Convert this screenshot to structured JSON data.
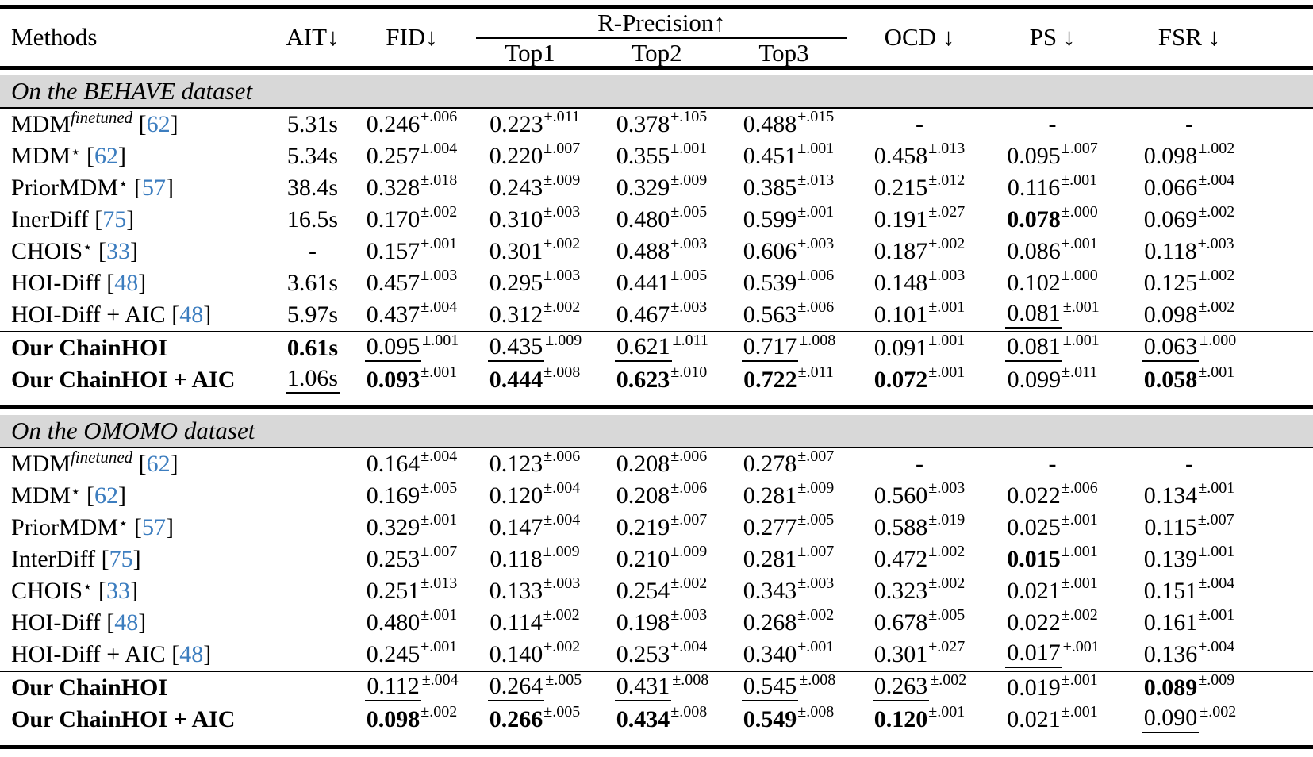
{
  "colors": {
    "citation_blue": "#3c7dbf",
    "band_gray": "#d8d8d8"
  },
  "header": {
    "methods": "Methods",
    "ait": "AIT↓",
    "fid": "FID↓",
    "rprecision": "R-Precision↑",
    "top1": "Top1",
    "top2": "Top2",
    "top3": "Top3",
    "ocd": "OCD ↓",
    "ps": "PS ↓",
    "fsr": "FSR ↓"
  },
  "sections": [
    {
      "title": "On the BEHAVE dataset",
      "rule_before_row": 7,
      "rows": [
        {
          "method": {
            "label": "MDM",
            "sup": "finetuned",
            "cite": "62"
          },
          "cells": [
            {
              "v": "5.31s"
            },
            {
              "v": "0.246",
              "e": "±.006"
            },
            {
              "v": "0.223",
              "e": "±.011"
            },
            {
              "v": "0.378",
              "e": "±.105"
            },
            {
              "v": "0.488",
              "e": "±.015"
            },
            {
              "v": "-"
            },
            {
              "v": "-"
            },
            {
              "v": "-"
            }
          ]
        },
        {
          "method": {
            "label": "MDM",
            "sup": "⋆",
            "cite": "62"
          },
          "cells": [
            {
              "v": "5.34s"
            },
            {
              "v": "0.257",
              "e": "±.004"
            },
            {
              "v": "0.220",
              "e": "±.007"
            },
            {
              "v": "0.355",
              "e": "±.001"
            },
            {
              "v": "0.451",
              "e": "±.001"
            },
            {
              "v": "0.458",
              "e": "±.013"
            },
            {
              "v": "0.095",
              "e": "±.007"
            },
            {
              "v": "0.098",
              "e": "±.002"
            }
          ]
        },
        {
          "method": {
            "label": "PriorMDM",
            "sup": "⋆",
            "cite": "57"
          },
          "cells": [
            {
              "v": "38.4s"
            },
            {
              "v": "0.328",
              "e": "±.018"
            },
            {
              "v": "0.243",
              "e": "±.009"
            },
            {
              "v": "0.329",
              "e": "±.009"
            },
            {
              "v": "0.385",
              "e": "±.013"
            },
            {
              "v": "0.215",
              "e": "±.012"
            },
            {
              "v": "0.116",
              "e": "±.001"
            },
            {
              "v": "0.066",
              "e": "±.004"
            }
          ]
        },
        {
          "method": {
            "label": "InerDiff",
            "cite": "75"
          },
          "cells": [
            {
              "v": "16.5s"
            },
            {
              "v": "0.170",
              "e": "±.002"
            },
            {
              "v": "0.310",
              "e": "±.003"
            },
            {
              "v": "0.480",
              "e": "±.005"
            },
            {
              "v": "0.599",
              "e": "±.001"
            },
            {
              "v": "0.191",
              "e": "±.027"
            },
            {
              "v": "0.078",
              "e": "±.000",
              "s": "b"
            },
            {
              "v": "0.069",
              "e": "±.002"
            }
          ]
        },
        {
          "method": {
            "label": "CHOIS",
            "sup": "⋆",
            "cite": "33"
          },
          "cells": [
            {
              "v": "-"
            },
            {
              "v": "0.157",
              "e": "±.001"
            },
            {
              "v": "0.301",
              "e": "±.002"
            },
            {
              "v": "0.488",
              "e": "±.003"
            },
            {
              "v": "0.606",
              "e": "±.003"
            },
            {
              "v": "0.187",
              "e": "±.002"
            },
            {
              "v": "0.086",
              "e": "±.001"
            },
            {
              "v": "0.118",
              "e": "±.003"
            }
          ]
        },
        {
          "method": {
            "label": "HOI-Diff",
            "cite": "48"
          },
          "cells": [
            {
              "v": "3.61s"
            },
            {
              "v": "0.457",
              "e": "±.003"
            },
            {
              "v": "0.295",
              "e": "±.003"
            },
            {
              "v": "0.441",
              "e": "±.005"
            },
            {
              "v": "0.539",
              "e": "±.006"
            },
            {
              "v": "0.148",
              "e": "±.003"
            },
            {
              "v": "0.102",
              "e": "±.000"
            },
            {
              "v": "0.125",
              "e": "±.002"
            }
          ]
        },
        {
          "method": {
            "label": "HOI-Diff + AIC",
            "cite": "48"
          },
          "cells": [
            {
              "v": "5.97s"
            },
            {
              "v": "0.437",
              "e": "±.004"
            },
            {
              "v": "0.312",
              "e": "±.002"
            },
            {
              "v": "0.467",
              "e": "±.003"
            },
            {
              "v": "0.563",
              "e": "±.006"
            },
            {
              "v": "0.101",
              "e": "±.001"
            },
            {
              "v": "0.081",
              "e": "±.001",
              "s": "u"
            },
            {
              "v": "0.098",
              "e": "±.002"
            }
          ]
        },
        {
          "method": {
            "label": "Our ChainHOI",
            "strong": true
          },
          "cells": [
            {
              "v": "0.61s",
              "s": "b"
            },
            {
              "v": "0.095",
              "e": "±.001",
              "s": "u"
            },
            {
              "v": "0.435",
              "e": "±.009",
              "s": "u"
            },
            {
              "v": "0.621",
              "e": "±.011",
              "s": "u"
            },
            {
              "v": "0.717",
              "e": "±.008",
              "s": "u"
            },
            {
              "v": "0.091",
              "e": "±.001"
            },
            {
              "v": "0.081",
              "e": "±.001",
              "s": "u"
            },
            {
              "v": "0.063",
              "e": "±.000",
              "s": "u"
            }
          ]
        },
        {
          "method": {
            "label": "Our ChainHOI + AIC",
            "strong": true
          },
          "cells": [
            {
              "v": "1.06s",
              "s": "u"
            },
            {
              "v": "0.093",
              "e": "±.001",
              "s": "b"
            },
            {
              "v": "0.444",
              "e": "±.008",
              "s": "b"
            },
            {
              "v": "0.623",
              "e": "±.010",
              "s": "b"
            },
            {
              "v": "0.722",
              "e": "±.011",
              "s": "b"
            },
            {
              "v": "0.072",
              "e": "±.001",
              "s": "b"
            },
            {
              "v": "0.099",
              "e": "±.011"
            },
            {
              "v": "0.058",
              "e": "±.001",
              "s": "b"
            }
          ]
        }
      ]
    },
    {
      "title": "On the OMOMO dataset",
      "rule_before_row": 7,
      "rows": [
        {
          "method": {
            "label": "MDM",
            "sup": "finetuned",
            "cite": "62"
          },
          "cells": [
            {
              "v": ""
            },
            {
              "v": "0.164",
              "e": "±.004"
            },
            {
              "v": "0.123",
              "e": "±.006"
            },
            {
              "v": "0.208",
              "e": "±.006"
            },
            {
              "v": "0.278",
              "e": "±.007"
            },
            {
              "v": "-"
            },
            {
              "v": "-"
            },
            {
              "v": "-"
            }
          ]
        },
        {
          "method": {
            "label": "MDM",
            "sup": "⋆",
            "cite": "62"
          },
          "cells": [
            {
              "v": ""
            },
            {
              "v": "0.169",
              "e": "±.005"
            },
            {
              "v": "0.120",
              "e": "±.004"
            },
            {
              "v": "0.208",
              "e": "±.006"
            },
            {
              "v": "0.281",
              "e": "±.009"
            },
            {
              "v": "0.560",
              "e": "±.003"
            },
            {
              "v": "0.022",
              "e": "±.006"
            },
            {
              "v": "0.134",
              "e": "±.001"
            }
          ]
        },
        {
          "method": {
            "label": "PriorMDM",
            "sup": "⋆",
            "cite": "57"
          },
          "cells": [
            {
              "v": ""
            },
            {
              "v": "0.329",
              "e": "±.001"
            },
            {
              "v": "0.147",
              "e": "±.004"
            },
            {
              "v": "0.219",
              "e": "±.007"
            },
            {
              "v": "0.277",
              "e": "±.005"
            },
            {
              "v": "0.588",
              "e": "±.019"
            },
            {
              "v": "0.025",
              "e": "±.001"
            },
            {
              "v": "0.115",
              "e": "±.007"
            }
          ]
        },
        {
          "method": {
            "label": "InterDiff",
            "cite": "75"
          },
          "cells": [
            {
              "v": ""
            },
            {
              "v": "0.253",
              "e": "±.007"
            },
            {
              "v": "0.118",
              "e": "±.009"
            },
            {
              "v": "0.210",
              "e": "±.009"
            },
            {
              "v": "0.281",
              "e": "±.007"
            },
            {
              "v": "0.472",
              "e": "±.002"
            },
            {
              "v": "0.015",
              "e": "±.001",
              "s": "b"
            },
            {
              "v": "0.139",
              "e": "±.001"
            }
          ]
        },
        {
          "method": {
            "label": "CHOIS",
            "sup": "⋆",
            "cite": "33"
          },
          "cells": [
            {
              "v": ""
            },
            {
              "v": "0.251",
              "e": "±.013"
            },
            {
              "v": "0.133",
              "e": "±.003"
            },
            {
              "v": "0.254",
              "e": "±.002"
            },
            {
              "v": "0.343",
              "e": "±.003"
            },
            {
              "v": "0.323",
              "e": "±.002"
            },
            {
              "v": "0.021",
              "e": "±.001"
            },
            {
              "v": "0.151",
              "e": "±.004"
            }
          ]
        },
        {
          "method": {
            "label": "HOI-Diff",
            "cite": "48"
          },
          "cells": [
            {
              "v": ""
            },
            {
              "v": "0.480",
              "e": "±.001"
            },
            {
              "v": "0.114",
              "e": "±.002"
            },
            {
              "v": "0.198",
              "e": "±.003"
            },
            {
              "v": "0.268",
              "e": "±.002"
            },
            {
              "v": "0.678",
              "e": "±.005"
            },
            {
              "v": "0.022",
              "e": "±.002"
            },
            {
              "v": "0.161",
              "e": "±.001"
            }
          ]
        },
        {
          "method": {
            "label": "HOI-Diff + AIC",
            "cite": "48"
          },
          "cells": [
            {
              "v": ""
            },
            {
              "v": "0.245",
              "e": "±.001"
            },
            {
              "v": "0.140",
              "e": "±.002"
            },
            {
              "v": "0.253",
              "e": "±.004"
            },
            {
              "v": "0.340",
              "e": "±.001"
            },
            {
              "v": "0.301",
              "e": "±.027"
            },
            {
              "v": "0.017",
              "e": "±.001",
              "s": "u"
            },
            {
              "v": "0.136",
              "e": "±.004"
            }
          ]
        },
        {
          "method": {
            "label": "Our ChainHOI",
            "strong": true
          },
          "cells": [
            {
              "v": ""
            },
            {
              "v": "0.112",
              "e": "±.004",
              "s": "u"
            },
            {
              "v": "0.264",
              "e": "±.005",
              "s": "u"
            },
            {
              "v": "0.431",
              "e": "±.008",
              "s": "u"
            },
            {
              "v": "0.545",
              "e": "±.008",
              "s": "u"
            },
            {
              "v": "0.263",
              "e": "±.002",
              "s": "u"
            },
            {
              "v": "0.019",
              "e": "±.001"
            },
            {
              "v": "0.089",
              "e": "±.009",
              "s": "b"
            }
          ]
        },
        {
          "method": {
            "label": "Our ChainHOI + AIC",
            "strong": true
          },
          "cells": [
            {
              "v": ""
            },
            {
              "v": "0.098",
              "e": "±.002",
              "s": "b"
            },
            {
              "v": "0.266",
              "e": "±.005",
              "s": "b"
            },
            {
              "v": "0.434",
              "e": "±.008",
              "s": "b"
            },
            {
              "v": "0.549",
              "e": "±.008",
              "s": "b"
            },
            {
              "v": "0.120",
              "e": "±.001",
              "s": "b"
            },
            {
              "v": "0.021",
              "e": "±.001"
            },
            {
              "v": "0.090",
              "e": "±.002",
              "s": "u"
            }
          ]
        }
      ]
    }
  ]
}
